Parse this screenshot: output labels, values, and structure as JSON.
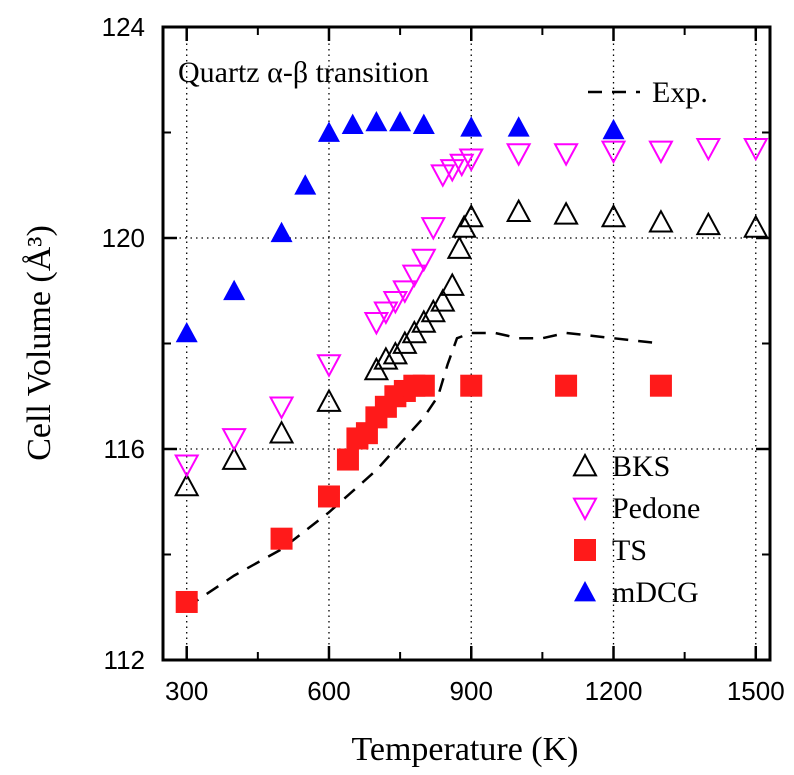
{
  "chart_data": {
    "type": "scatter",
    "annotation": "Quartz α-β transition",
    "xlabel": "Temperature (K)",
    "ylabel": "Cell Volume (Å³)",
    "xlim": [
      250,
      1530
    ],
    "ylim": [
      112,
      124
    ],
    "xticks": [
      300,
      600,
      900,
      1200,
      1500
    ],
    "yticks": [
      112,
      116,
      120,
      124
    ],
    "grid": true,
    "series": [
      {
        "name": "Exp.",
        "kind": "dashed-line",
        "color": "#000000",
        "x": [
          300,
          400,
          500,
          600,
          650,
          700,
          750,
          800,
          830,
          850,
          870,
          900,
          950,
          1000,
          1050,
          1100,
          1200,
          1300
        ],
        "y": [
          113.0,
          113.6,
          114.1,
          114.8,
          115.2,
          115.6,
          116.1,
          116.6,
          117.0,
          117.6,
          118.1,
          118.2,
          118.2,
          118.1,
          118.1,
          118.2,
          118.1,
          118.0
        ]
      },
      {
        "name": "BKS",
        "kind": "open-triangle-up",
        "color": "#000000",
        "x": [
          300,
          400,
          500,
          600,
          700,
          720,
          740,
          760,
          780,
          800,
          820,
          840,
          860,
          875,
          885,
          900,
          1000,
          1100,
          1200,
          1300,
          1400,
          1500
        ],
        "y": [
          115.3,
          115.8,
          116.3,
          116.9,
          117.5,
          117.7,
          117.8,
          118.0,
          118.2,
          118.4,
          118.6,
          118.8,
          119.1,
          119.8,
          120.2,
          120.4,
          120.5,
          120.45,
          120.4,
          120.3,
          120.25,
          120.2
        ]
      },
      {
        "name": "Pedone",
        "kind": "open-triangle-down",
        "color": "#ff00ff",
        "x": [
          300,
          400,
          500,
          600,
          700,
          720,
          740,
          760,
          780,
          800,
          820,
          840,
          860,
          880,
          900,
          1000,
          1100,
          1200,
          1300,
          1400,
          1500
        ],
        "y": [
          115.7,
          116.2,
          116.8,
          117.6,
          118.4,
          118.6,
          118.8,
          119.0,
          119.3,
          119.6,
          120.2,
          121.2,
          121.3,
          121.4,
          121.5,
          121.6,
          121.6,
          121.65,
          121.65,
          121.7,
          121.7
        ]
      },
      {
        "name": "TS",
        "kind": "filled-square",
        "color": "#ff1a1a",
        "x": [
          300,
          500,
          600,
          640,
          660,
          680,
          700,
          720,
          740,
          760,
          780,
          800,
          900,
          1100,
          1300
        ],
        "y": [
          113.1,
          114.3,
          115.1,
          115.8,
          116.2,
          116.3,
          116.6,
          116.8,
          117.0,
          117.1,
          117.2,
          117.2,
          117.2,
          117.2,
          117.2
        ]
      },
      {
        "name": "mDCG",
        "kind": "filled-triangle-up",
        "color": "#0000ff",
        "x": [
          300,
          400,
          500,
          550,
          600,
          650,
          700,
          750,
          800,
          900,
          1000,
          1200
        ],
        "y": [
          118.2,
          119.0,
          120.1,
          121.0,
          122.0,
          122.15,
          122.2,
          122.2,
          122.15,
          122.1,
          122.1,
          122.05
        ]
      }
    ],
    "legend": {
      "top_entry": "Exp.",
      "entries": [
        "BKS",
        "Pedone",
        "TS",
        "mDCG"
      ],
      "placement": "lower-right"
    }
  }
}
